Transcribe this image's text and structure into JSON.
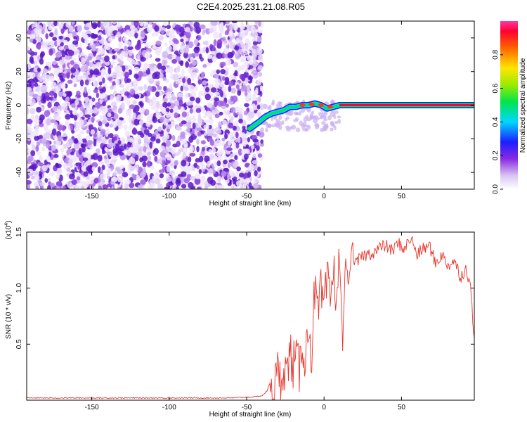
{
  "title": "C2E4.2025.231.21.08.R05",
  "chart_data": [
    {
      "type": "heatmap",
      "xlabel": "Height of straight line (km)",
      "ylabel": "Frequency (Hz)",
      "xlim": [
        -192,
        97
      ],
      "ylim": [
        -50,
        50
      ],
      "xticks": [
        -150,
        -100,
        -50,
        0,
        50
      ],
      "yticks": [
        -40,
        -20,
        0,
        20,
        40
      ],
      "grid": false,
      "description_of_values": "noise-dominated band -192..-40 km; signal track converging to 0 Hz",
      "track": {
        "x": [
          -48,
          -45,
          -42,
          -38,
          -34,
          -30,
          -26,
          -22,
          -18,
          -14,
          -10,
          -6,
          -2,
          2,
          6,
          10,
          97
        ],
        "y": [
          -14,
          -12,
          -10,
          -7,
          -5,
          -4,
          -3,
          -1,
          -1,
          0,
          0,
          1,
          0,
          -2,
          -1,
          0,
          0
        ]
      },
      "colorbar": {
        "label": "Normalized spectral amplitude",
        "range": [
          0,
          1
        ],
        "ticks": [
          0.0,
          0.2,
          0.4,
          0.6,
          0.8
        ]
      }
    },
    {
      "type": "line",
      "xlabel": "Height of straight line (km)",
      "ylabel": "SNR (10 * v/v)",
      "ymult": "(x10",
      "ymult_exp": "4",
      "ymult_close": ")",
      "xlim": [
        -192,
        97
      ],
      "ylim": [
        0,
        1.5
      ],
      "xticks": [
        -150,
        -100,
        -50,
        0,
        50
      ],
      "yticks": [
        0.5,
        1.0,
        1.5
      ],
      "ytick_labels": [
        "0.5",
        "1.0",
        "1.5"
      ],
      "color": "#e8352b",
      "series": [
        {
          "x": [
            -192,
            -150,
            -100,
            -60,
            -45,
            -40,
            -37,
            -34,
            -32,
            -30,
            -28,
            -26,
            -24,
            -22,
            -20,
            -18,
            -16,
            -14,
            -12,
            -10,
            -8,
            -6,
            -4,
            -2,
            0,
            2,
            4,
            6,
            8,
            10,
            12,
            14,
            16,
            18,
            20,
            24,
            28,
            32,
            36,
            40,
            44,
            48,
            52,
            56,
            60,
            64,
            68,
            72,
            76,
            80,
            84,
            88,
            92,
            95,
            97
          ],
          "y": [
            0.02,
            0.02,
            0.02,
            0.02,
            0.03,
            0.04,
            0.08,
            0.18,
            0.1,
            0.25,
            0.15,
            0.35,
            0.2,
            0.45,
            0.3,
            0.38,
            0.25,
            0.55,
            0.35,
            0.7,
            0.4,
            1.0,
            0.75,
            0.95,
            0.8,
            1.05,
            0.9,
            1.15,
            0.95,
            1.25,
            0.5,
            1.3,
            1.0,
            1.4,
            1.2,
            1.28,
            1.3,
            1.32,
            1.36,
            1.38,
            1.33,
            1.4,
            1.35,
            1.45,
            1.3,
            1.35,
            1.38,
            1.22,
            1.3,
            1.2,
            1.25,
            1.1,
            1.18,
            0.95,
            0.55
          ]
        }
      ]
    }
  ]
}
